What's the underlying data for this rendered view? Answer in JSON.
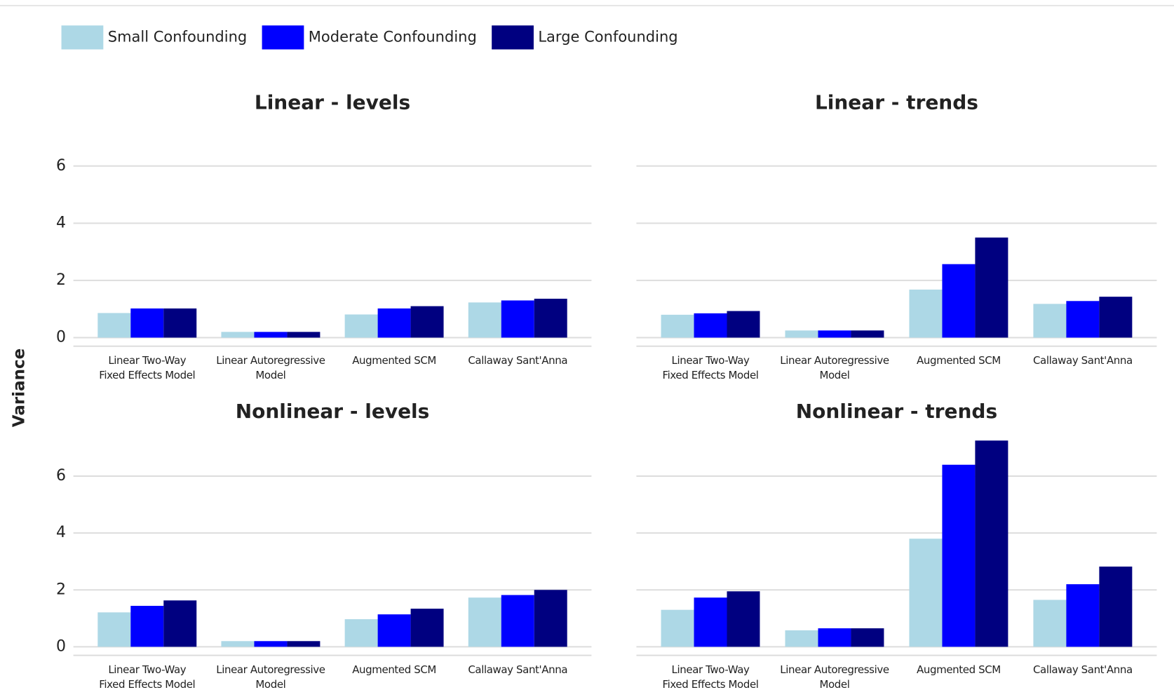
{
  "chart_data": [
    {
      "type": "bar",
      "title": "Linear - levels",
      "ylabel": "Variance",
      "categories": [
        "Linear Two-Way\nFixed Effects Model",
        "Linear Autoregressive\nModel",
        "Augmented SCM",
        "Callaway Sant'Anna"
      ],
      "series": [
        {
          "name": "Small Confounding",
          "color": "#add8e6",
          "values": [
            0.86,
            0.2,
            0.81,
            1.23
          ]
        },
        {
          "name": "Moderate Confounding",
          "color": "#0000ff",
          "values": [
            1.02,
            0.2,
            1.02,
            1.3
          ]
        },
        {
          "name": "Large Confounding",
          "color": "#000080",
          "values": [
            1.02,
            0.2,
            1.1,
            1.36
          ]
        }
      ],
      "ylim": [
        -0.3,
        7.4
      ],
      "yticks": [
        0,
        2,
        4,
        6
      ],
      "grid": true
    },
    {
      "type": "bar",
      "title": "Linear - trends",
      "categories": [
        "Linear Two-Way\nFixed Effects Model",
        "Linear Autoregressive\nModel",
        "Augmented SCM",
        "Callaway Sant'Anna"
      ],
      "series": [
        {
          "name": "Small Confounding",
          "color": "#add8e6",
          "values": [
            0.8,
            0.25,
            1.68,
            1.18
          ]
        },
        {
          "name": "Moderate Confounding",
          "color": "#0000ff",
          "values": [
            0.85,
            0.25,
            2.57,
            1.28
          ]
        },
        {
          "name": "Large Confounding",
          "color": "#000080",
          "values": [
            0.93,
            0.25,
            3.5,
            1.43
          ]
        }
      ],
      "ylim": [
        -0.3,
        7.4
      ],
      "yticks": [
        0,
        2,
        4,
        6
      ],
      "grid": true
    },
    {
      "type": "bar",
      "title": "Nonlinear - levels",
      "categories": [
        "Linear Two-Way\nFixed Effects Model",
        "Linear Autoregressive\nModel",
        "Augmented SCM",
        "Callaway Sant'Anna"
      ],
      "series": [
        {
          "name": "Small Confounding",
          "color": "#add8e6",
          "values": [
            1.21,
            0.2,
            0.97,
            1.73
          ]
        },
        {
          "name": "Moderate Confounding",
          "color": "#0000ff",
          "values": [
            1.44,
            0.2,
            1.14,
            1.82
          ]
        },
        {
          "name": "Large Confounding",
          "color": "#000080",
          "values": [
            1.63,
            0.2,
            1.34,
            2.0
          ]
        }
      ],
      "ylim": [
        -0.3,
        7.4
      ],
      "yticks": [
        0,
        2,
        4,
        6
      ],
      "grid": true
    },
    {
      "type": "bar",
      "title": "Nonlinear - trends",
      "categories": [
        "Linear Two-Way\nFixed Effects Model",
        "Linear Autoregressive\nModel",
        "Augmented SCM",
        "Callaway Sant'Anna"
      ],
      "series": [
        {
          "name": "Small Confounding",
          "color": "#add8e6",
          "values": [
            1.3,
            0.58,
            3.8,
            1.65
          ]
        },
        {
          "name": "Moderate Confounding",
          "color": "#0000ff",
          "values": [
            1.73,
            0.65,
            6.4,
            2.2
          ]
        },
        {
          "name": "Large Confounding",
          "color": "#000080",
          "values": [
            1.95,
            0.65,
            7.25,
            2.82
          ]
        }
      ],
      "ylim": [
        -0.3,
        7.4
      ],
      "yticks": [
        0,
        2,
        4,
        6
      ],
      "grid": true
    }
  ]
}
